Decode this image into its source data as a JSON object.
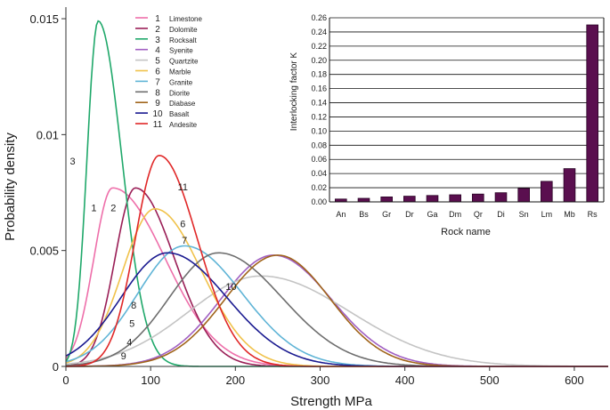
{
  "chart_data": [
    {
      "type": "line",
      "title": "",
      "xlabel": "Strength MPa",
      "ylabel": "Probability density",
      "xlim": [
        0,
        640
      ],
      "ylim": [
        0,
        0.0155
      ],
      "xticks": [
        0,
        100,
        200,
        300,
        400,
        500,
        600
      ],
      "xtick_labels": [
        "0",
        "100",
        "200",
        "300",
        "400",
        "500",
        "600"
      ],
      "yticks": [
        0,
        0.005,
        0.01,
        0.015
      ],
      "ytick_labels": [
        "0",
        "0.005",
        "0.01",
        "0.015"
      ],
      "legend_position": "top-center",
      "series": [
        {
          "id": "1",
          "name": "Limestone",
          "color": "#ee6faa",
          "peak_x": 55,
          "peak_y": 0.0077,
          "sigma_left": 22,
          "sigma_right": 62,
          "curve_label_at": [
            33,
            0.0067
          ]
        },
        {
          "id": "2",
          "name": "Dolomite",
          "color": "#9a1e56",
          "peak_x": 82,
          "peak_y": 0.0077,
          "sigma_left": 24,
          "sigma_right": 46,
          "curve_label_at": [
            56,
            0.0067
          ]
        },
        {
          "id": "3",
          "name": "Rocksalt",
          "color": "#1fa86a",
          "peak_x": 38,
          "peak_y": 0.0149,
          "sigma_left": 13,
          "sigma_right": 28,
          "curve_label_at": [
            8,
            0.0087
          ]
        },
        {
          "id": "4",
          "name": "Syenite",
          "color": "#a05fc2",
          "peak_x": 245,
          "peak_y": 0.0048,
          "sigma_left": 62,
          "sigma_right": 68,
          "curve_label_at": [
            75,
            0.0009
          ]
        },
        {
          "id": "5",
          "name": "Quartzite",
          "color": "#c4c4c4",
          "peak_x": 230,
          "peak_y": 0.0039,
          "sigma_left": 85,
          "sigma_right": 105,
          "curve_label_at": [
            78,
            0.0017
          ]
        },
        {
          "id": "6",
          "name": "Marble",
          "color": "#f0c24a",
          "peak_x": 105,
          "peak_y": 0.0068,
          "sigma_left": 38,
          "sigma_right": 55,
          "curve_label_at": [
            138,
            0.006
          ]
        },
        {
          "id": "7",
          "name": "Granite",
          "color": "#5fb4d6",
          "peak_x": 140,
          "peak_y": 0.0052,
          "sigma_left": 55,
          "sigma_right": 68,
          "curve_label_at": [
            140,
            0.0053
          ]
        },
        {
          "id": "8",
          "name": "Diorite",
          "color": "#6e6e6e",
          "peak_x": 180,
          "peak_y": 0.0049,
          "sigma_left": 58,
          "sigma_right": 75,
          "curve_label_at": [
            80,
            0.0025
          ]
        },
        {
          "id": "9",
          "name": "Diabase",
          "color": "#a0641a",
          "peak_x": 250,
          "peak_y": 0.0048,
          "sigma_left": 62,
          "sigma_right": 62,
          "curve_label_at": [
            68,
            0.0003
          ]
        },
        {
          "id": "10",
          "name": "Basalt",
          "color": "#1a1a90",
          "peak_x": 120,
          "peak_y": 0.0049,
          "sigma_left": 55,
          "sigma_right": 70,
          "curve_label_at": [
            195,
            0.0033
          ]
        },
        {
          "id": "11",
          "name": "Andesite",
          "color": "#e02727",
          "peak_x": 110,
          "peak_y": 0.0091,
          "sigma_left": 28,
          "sigma_right": 45,
          "curve_label_at": [
            138,
            0.0076
          ]
        }
      ]
    },
    {
      "type": "bar",
      "title": "",
      "xlabel": "Rock name",
      "ylabel": "Interlocking factor K",
      "ylim": [
        0,
        0.26
      ],
      "yticks": [
        0,
        0.02,
        0.04,
        0.06,
        0.08,
        0.1,
        0.12,
        0.14,
        0.16,
        0.18,
        0.2,
        0.22,
        0.24,
        0.26
      ],
      "ytick_labels": [
        "0.00",
        "0.02",
        "0.04",
        "0.06",
        "0.08",
        "0.10",
        "0.12",
        "0.14",
        "0.16",
        "0.18",
        "0.20",
        "0.22",
        "0.24",
        "0.26"
      ],
      "grid": true,
      "bar_color": "#5a0f4f",
      "categories": [
        "An",
        "Bs",
        "Gr",
        "Dr",
        "Ga",
        "Dm",
        "Qr",
        "Di",
        "Sn",
        "Lm",
        "Mb",
        "Rs"
      ],
      "values": [
        0.004,
        0.005,
        0.007,
        0.008,
        0.009,
        0.01,
        0.011,
        0.013,
        0.019,
        0.029,
        0.047,
        0.25
      ]
    }
  ]
}
